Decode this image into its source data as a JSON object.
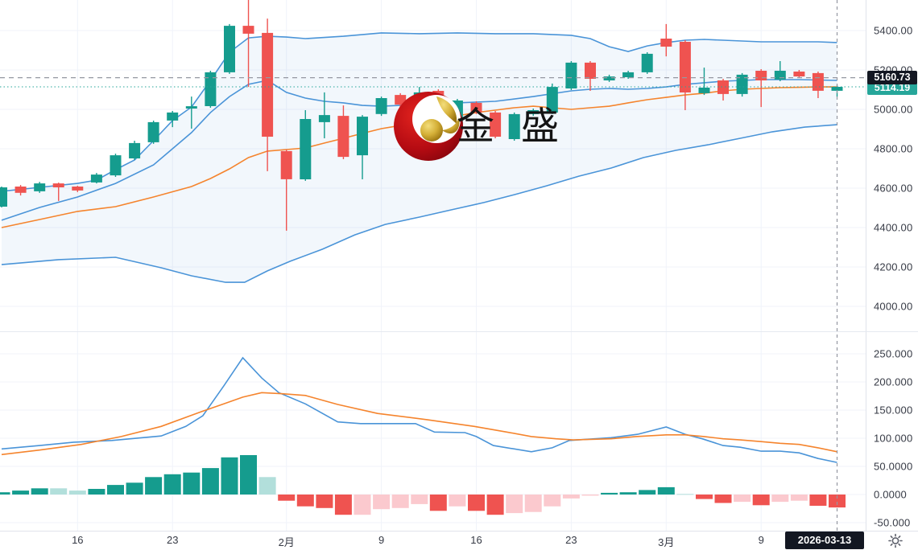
{
  "watermark": {
    "text": "金 盛"
  },
  "price_axis": {
    "crosshair_label": "5160.73",
    "last_price_label": "5114.19",
    "tick_labels": [
      "5400.00",
      "5200.00",
      "5000.00",
      "4800.00",
      "4600.00",
      "4400.00",
      "4200.00",
      "4000.00"
    ],
    "tick_values": [
      5400,
      5200,
      5000,
      4800,
      4600,
      4400,
      4200,
      4000
    ]
  },
  "indicator_axis": {
    "tick_labels": [
      "250.000",
      "200.000",
      "150.000",
      "100.000",
      "50.0000",
      "0.0000",
      "-50.000"
    ],
    "tick_values": [
      250,
      200,
      150,
      100,
      50,
      0,
      -50
    ]
  },
  "time_axis": {
    "ticks": [
      {
        "label": "16",
        "index": 4
      },
      {
        "label": "23",
        "index": 9
      },
      {
        "label": "2月",
        "index": 15
      },
      {
        "label": "9",
        "index": 20
      },
      {
        "label": "16",
        "index": 25
      },
      {
        "label": "23",
        "index": 30
      },
      {
        "label": "3月",
        "index": 35
      },
      {
        "label": "9",
        "index": 40
      }
    ],
    "crosshair_date": "2026-03-13"
  },
  "colors": {
    "up": "#159c8e",
    "down": "#ef5350",
    "hist_up": "#159c8e",
    "hist_up_fade": "#b2dfdb",
    "hist_down": "#ef5350",
    "hist_down_fade": "#fbc9ce",
    "band_blue": "#4a94d8",
    "band_fill": "#4a94d8",
    "ma_orange": "#f5842d",
    "grid": "#f0f3fa",
    "crosshair": "#9598a1",
    "last_price_line": "#26a69a",
    "badge_black": "#131722",
    "badge_teal": "#26a69a",
    "logo_red": "#b50b12",
    "logo_gold": "#c9a227"
  },
  "chart_data": {
    "type": "candlestick",
    "title": "",
    "legend_position": "none",
    "grid": true,
    "x_range_note": "45 daily candles, crosshair on last bar 2026-03-13",
    "price_pane": {
      "ylim": [
        3873,
        5555
      ],
      "crosshair_price": 5160.73,
      "last_price": 5114.19,
      "candles_ohlc": [
        [
          4506,
          4608,
          4502,
          4604
        ],
        [
          4608,
          4616,
          4563,
          4576
        ],
        [
          4584,
          4632,
          4576,
          4624
        ],
        [
          4624,
          4628,
          4535,
          4604
        ],
        [
          4608,
          4612,
          4580,
          4588
        ],
        [
          4629,
          4677,
          4624,
          4669
        ],
        [
          4665,
          4775,
          4657,
          4767
        ],
        [
          4751,
          4841,
          4743,
          4829
        ],
        [
          4833,
          4943,
          4825,
          4935
        ],
        [
          4943,
          4992,
          4910,
          4984
        ],
        [
          5004,
          5065,
          4902,
          5016
        ],
        [
          5016,
          5196,
          5008,
          5188
        ],
        [
          5188,
          5433,
          5180,
          5424
        ],
        [
          5424,
          5570,
          5114,
          5384
        ],
        [
          5388,
          5461,
          4686,
          4861
        ],
        [
          4788,
          4796,
          4384,
          4645
        ],
        [
          4645,
          4996,
          4637,
          4951
        ],
        [
          4935,
          5086,
          4853,
          4971
        ],
        [
          4967,
          5020,
          4747,
          4759
        ],
        [
          4767,
          4971,
          4645,
          4963
        ],
        [
          4976,
          5065,
          4967,
          5057
        ],
        [
          5073,
          5082,
          5012,
          5024
        ],
        [
          4931,
          5114,
          4922,
          5086
        ],
        [
          5094,
          5102,
          4861,
          4869
        ],
        [
          4922,
          5053,
          4914,
          5045
        ],
        [
          5033,
          5041,
          4976,
          4984
        ],
        [
          4984,
          4992,
          4853,
          4861
        ],
        [
          4849,
          4984,
          4841,
          4976
        ],
        [
          4976,
          5004,
          4967,
          4996
        ],
        [
          4984,
          5131,
          4976,
          5114
        ],
        [
          5106,
          5245,
          5098,
          5237
        ],
        [
          5237,
          5245,
          5094,
          5155
        ],
        [
          5147,
          5176,
          5139,
          5167
        ],
        [
          5163,
          5196,
          5155,
          5188
        ],
        [
          5188,
          5290,
          5180,
          5282
        ],
        [
          5359,
          5433,
          5269,
          5318
        ],
        [
          5343,
          5351,
          4996,
          5086
        ],
        [
          5082,
          5212,
          5073,
          5110
        ],
        [
          5147,
          5155,
          5045,
          5078
        ],
        [
          5078,
          5184,
          5065,
          5176
        ],
        [
          5196,
          5204,
          5012,
          5147
        ],
        [
          5151,
          5245,
          5143,
          5196
        ],
        [
          5192,
          5200,
          5159,
          5167
        ],
        [
          5184,
          5192,
          5057,
          5094
        ],
        [
          5094,
          5122,
          5065,
          5114.19
        ]
      ],
      "bollinger_upper": [
        [
          0,
          4584
        ],
        [
          2,
          4604
        ],
        [
          4,
          4624
        ],
        [
          5,
          4641
        ],
        [
          6,
          4694
        ],
        [
          7,
          4743
        ],
        [
          8,
          4841
        ],
        [
          9,
          4943
        ],
        [
          10,
          5012
        ],
        [
          11,
          5147
        ],
        [
          12,
          5290
        ],
        [
          13,
          5363
        ],
        [
          14,
          5371
        ],
        [
          15,
          5367
        ],
        [
          16,
          5359
        ],
        [
          18,
          5371
        ],
        [
          20,
          5388
        ],
        [
          22,
          5384
        ],
        [
          24,
          5388
        ],
        [
          26,
          5384
        ],
        [
          28,
          5384
        ],
        [
          30,
          5376
        ],
        [
          31,
          5359
        ],
        [
          32,
          5318
        ],
        [
          33,
          5294
        ],
        [
          34,
          5322
        ],
        [
          35,
          5339
        ],
        [
          36,
          5351
        ],
        [
          37,
          5355
        ],
        [
          38,
          5351
        ],
        [
          39,
          5347
        ],
        [
          40,
          5343
        ],
        [
          41,
          5343
        ],
        [
          42,
          5343
        ],
        [
          43,
          5343
        ],
        [
          44,
          5339
        ]
      ],
      "bollinger_basis": [
        [
          0,
          4437
        ],
        [
          2,
          4502
        ],
        [
          4,
          4555
        ],
        [
          6,
          4624
        ],
        [
          8,
          4718
        ],
        [
          9,
          4800
        ],
        [
          10,
          4882
        ],
        [
          11,
          4984
        ],
        [
          12,
          5065
        ],
        [
          13,
          5127
        ],
        [
          14,
          5147
        ],
        [
          15,
          5086
        ],
        [
          16,
          5057
        ],
        [
          17,
          5041
        ],
        [
          18,
          5033
        ],
        [
          19,
          5020
        ],
        [
          20,
          5016
        ],
        [
          22,
          5024
        ],
        [
          24,
          5033
        ],
        [
          26,
          5041
        ],
        [
          28,
          5065
        ],
        [
          30,
          5094
        ],
        [
          31,
          5102
        ],
        [
          32,
          5106
        ],
        [
          33,
          5102
        ],
        [
          34,
          5106
        ],
        [
          35,
          5114
        ],
        [
          36,
          5127
        ],
        [
          37,
          5135
        ],
        [
          38,
          5143
        ],
        [
          39,
          5147
        ],
        [
          40,
          5151
        ],
        [
          41,
          5151
        ],
        [
          42,
          5151
        ],
        [
          43,
          5149
        ],
        [
          44,
          5147
        ]
      ],
      "bollinger_lower": [
        [
          0,
          4212
        ],
        [
          3,
          4237
        ],
        [
          6,
          4249
        ],
        [
          8.4,
          4196
        ],
        [
          10,
          4155
        ],
        [
          11.8,
          4122
        ],
        [
          12.8,
          4122
        ],
        [
          14,
          4180
        ],
        [
          15.2,
          4229
        ],
        [
          16.9,
          4290
        ],
        [
          18.6,
          4363
        ],
        [
          20.2,
          4416
        ],
        [
          22,
          4453
        ],
        [
          23.7,
          4490
        ],
        [
          25.4,
          4527
        ],
        [
          27,
          4567
        ],
        [
          28.7,
          4612
        ],
        [
          30.4,
          4661
        ],
        [
          32.1,
          4702
        ],
        [
          33.8,
          4755
        ],
        [
          35.5,
          4792
        ],
        [
          37.2,
          4820
        ],
        [
          38.9,
          4853
        ],
        [
          40.6,
          4886
        ],
        [
          42.3,
          4910
        ],
        [
          44,
          4922
        ]
      ],
      "ma_line": [
        [
          0,
          4400
        ],
        [
          2,
          4441
        ],
        [
          4,
          4482
        ],
        [
          6,
          4506
        ],
        [
          8,
          4555
        ],
        [
          10,
          4608
        ],
        [
          11,
          4649
        ],
        [
          12,
          4698
        ],
        [
          13,
          4755
        ],
        [
          14,
          4788
        ],
        [
          15,
          4796
        ],
        [
          16,
          4804
        ],
        [
          17,
          4829
        ],
        [
          18,
          4853
        ],
        [
          19,
          4878
        ],
        [
          20,
          4902
        ],
        [
          21,
          4918
        ],
        [
          22,
          4935
        ],
        [
          23,
          4951
        ],
        [
          24,
          4967
        ],
        [
          25,
          4984
        ],
        [
          26,
          4996
        ],
        [
          27,
          5008
        ],
        [
          28,
          5016
        ],
        [
          29,
          5008
        ],
        [
          30,
          5000
        ],
        [
          31,
          5008
        ],
        [
          32,
          5016
        ],
        [
          33,
          5033
        ],
        [
          34,
          5049
        ],
        [
          35,
          5061
        ],
        [
          36,
          5073
        ],
        [
          37,
          5082
        ],
        [
          38,
          5094
        ],
        [
          39,
          5102
        ],
        [
          40,
          5106
        ],
        [
          41,
          5110
        ],
        [
          42,
          5112
        ],
        [
          43,
          5114
        ],
        [
          44,
          5114
        ]
      ]
    },
    "indicator_pane": {
      "ylim": [
        -64,
        278
      ],
      "histogram": [
        4,
        7,
        11,
        11,
        7,
        10,
        17,
        21,
        31,
        36,
        39,
        47,
        66,
        70,
        31,
        -11,
        -21,
        -24,
        -36,
        -36,
        -26,
        -24,
        -17,
        -29,
        -21,
        -29,
        -36,
        -33,
        -31,
        -21,
        -7,
        -2,
        3,
        4,
        8,
        13,
        1,
        -8,
        -15,
        -13,
        -19,
        -13,
        -11,
        -20,
        -23
      ],
      "histogram_shade": [
        "g",
        "g",
        "g",
        "gl",
        "gl",
        "g",
        "g",
        "g",
        "g",
        "g",
        "g",
        "g",
        "g",
        "g",
        "gl",
        "r",
        "r",
        "r",
        "r",
        "rl",
        "rl",
        "rl",
        "rl",
        "r",
        "rl",
        "r",
        "r",
        "rl",
        "rl",
        "rl",
        "rl",
        "rl",
        "g",
        "g",
        "g",
        "g",
        "gl",
        "r",
        "r",
        "rl",
        "r",
        "rl",
        "rl",
        "r",
        "r"
      ],
      "fast_line": [
        [
          0,
          81
        ],
        [
          2,
          87
        ],
        [
          3.8,
          93
        ],
        [
          5.8,
          96
        ],
        [
          8.4,
          104
        ],
        [
          9.7,
          121
        ],
        [
          10.6,
          140
        ],
        [
          11.7,
          193
        ],
        [
          12.7,
          243
        ],
        [
          13.7,
          207
        ],
        [
          14.6,
          181
        ],
        [
          16,
          161
        ],
        [
          17.7,
          129
        ],
        [
          18.9,
          126
        ],
        [
          21.8,
          126
        ],
        [
          22.8,
          111
        ],
        [
          24.4,
          110
        ],
        [
          25,
          103
        ],
        [
          25.9,
          87
        ],
        [
          27.9,
          76
        ],
        [
          29,
          83
        ],
        [
          29.9,
          96
        ],
        [
          32.1,
          101
        ],
        [
          33.5,
          107
        ],
        [
          35,
          120
        ],
        [
          36,
          107
        ],
        [
          36.9,
          99
        ],
        [
          38,
          87
        ],
        [
          38.9,
          84
        ],
        [
          40,
          77
        ],
        [
          41,
          77
        ],
        [
          42,
          74
        ],
        [
          43,
          64
        ],
        [
          44,
          57
        ]
      ],
      "slow_line": [
        [
          0,
          71
        ],
        [
          2,
          79
        ],
        [
          4.2,
          89
        ],
        [
          6.3,
          103
        ],
        [
          8.4,
          121
        ],
        [
          10.5,
          147
        ],
        [
          11.7,
          161
        ],
        [
          12.7,
          173
        ],
        [
          13.7,
          181
        ],
        [
          14.8,
          179
        ],
        [
          16,
          176
        ],
        [
          17.7,
          160
        ],
        [
          19.8,
          144
        ],
        [
          22.4,
          133
        ],
        [
          24.9,
          121
        ],
        [
          26.6,
          111
        ],
        [
          27.9,
          103
        ],
        [
          29.2,
          99
        ],
        [
          30.1,
          97
        ],
        [
          32.1,
          99
        ],
        [
          33.4,
          103
        ],
        [
          35,
          106
        ],
        [
          36,
          106
        ],
        [
          37,
          103
        ],
        [
          38,
          99
        ],
        [
          38.9,
          97
        ],
        [
          40,
          94
        ],
        [
          41,
          91
        ],
        [
          42,
          89
        ],
        [
          43,
          83
        ],
        [
          44,
          76
        ]
      ]
    }
  }
}
